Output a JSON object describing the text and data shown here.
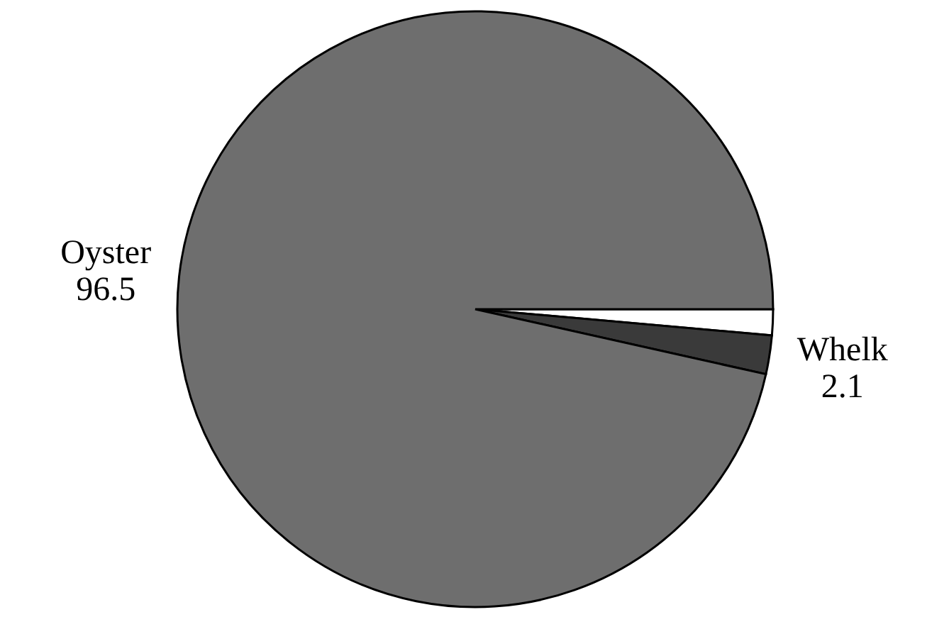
{
  "chart_data": {
    "type": "pie",
    "categories": [
      null,
      "Whelk",
      "Oyster"
    ],
    "values": [
      1.4,
      2.1,
      96.5
    ],
    "value_labels": [
      null,
      "2.1",
      "96.5"
    ],
    "colors": [
      "#ffffff",
      "#3a3a3a",
      "#6e6e6e"
    ]
  }
}
